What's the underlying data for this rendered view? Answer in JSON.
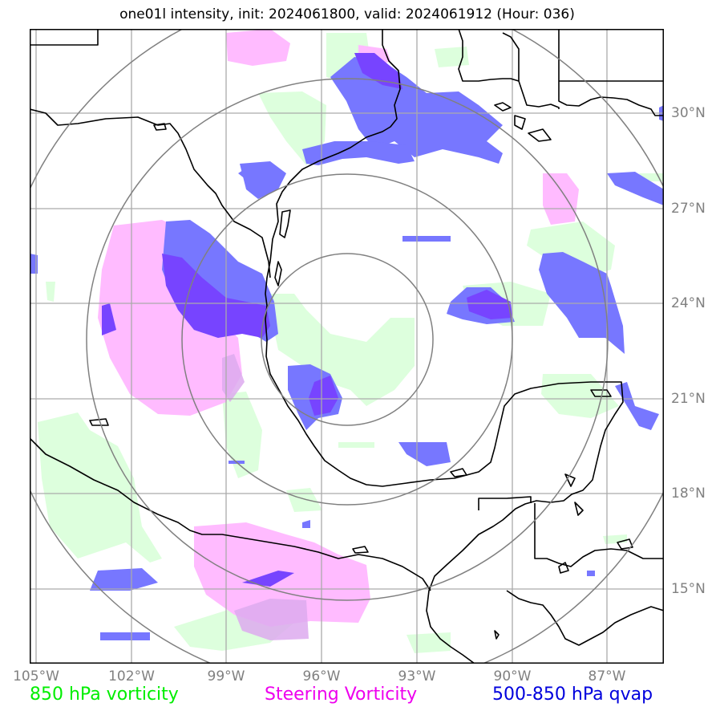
{
  "title": "one01l intensity, init: 2024061800, valid: 2024061912 (Hour: 036)",
  "lon_labels": [
    "105°W",
    "102°W",
    "99°W",
    "96°W",
    "93°W",
    "90°W",
    "87°W"
  ],
  "lat_labels": [
    "30°N",
    "27°N",
    "24°N",
    "21°N",
    "18°N",
    "15°N"
  ],
  "legend": {
    "vorticity_850": "850 hPa vorticity",
    "steering_vorticity": "Steering Vorticity",
    "qvap": "500-850 hPa qvap"
  },
  "colors": {
    "vorticity_850": "#00ff00",
    "steering_vorticity": "#ee00ee",
    "qvap": "#0000dd",
    "fill_green": "#ddffdd",
    "fill_pink": "#ffbbff",
    "fill_blue": "#7777ff",
    "fill_purple": "#7744ff",
    "grid": "#aaaaaa",
    "range_rings": "#808080"
  },
  "map": {
    "lon_range": [
      -105,
      -85
    ],
    "lat_range": [
      12.5,
      32.5
    ],
    "center_lon": -95.0,
    "center_lat": 22.8,
    "ring_radii_deg": [
      2.7,
      5.2,
      8.2,
      11.0
    ]
  }
}
